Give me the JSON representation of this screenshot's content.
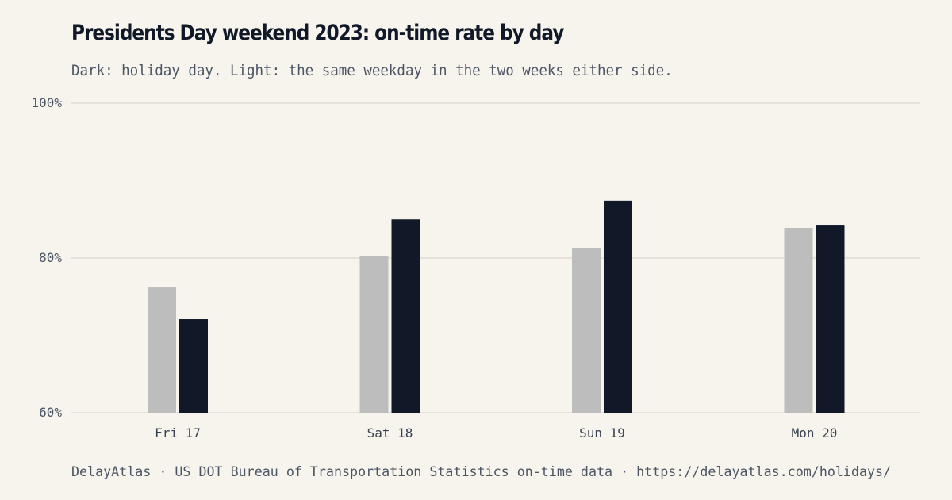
{
  "title": "Presidents Day weekend 2023: on-time rate by day",
  "subtitle": "Dark: holiday day. Light: the same weekday in the two weeks either side.",
  "footer": "DelayAtlas · US DOT Bureau of Transportation Statistics on-time data · https://delayatlas.com/holidays/",
  "colors": {
    "background": "#f7f4ee",
    "holiday": "#111827",
    "comparison": "#bdbdbd",
    "grid": "#e6e2da"
  },
  "chart_data": {
    "type": "bar",
    "categories": [
      "Fri 17",
      "Sat 18",
      "Sun 19",
      "Mon 20"
    ],
    "series": [
      {
        "key": "comparison",
        "values": [
          76.2,
          80.3,
          81.3,
          83.9
        ]
      },
      {
        "key": "holiday",
        "values": [
          72.1,
          85.0,
          87.4,
          84.2
        ]
      }
    ],
    "ylim": [
      60,
      100
    ],
    "yticks": [
      60,
      80,
      100
    ],
    "ytick_labels": [
      "60%",
      "80%",
      "100%"
    ],
    "grid": true,
    "legend": "none (described in subtitle)"
  }
}
